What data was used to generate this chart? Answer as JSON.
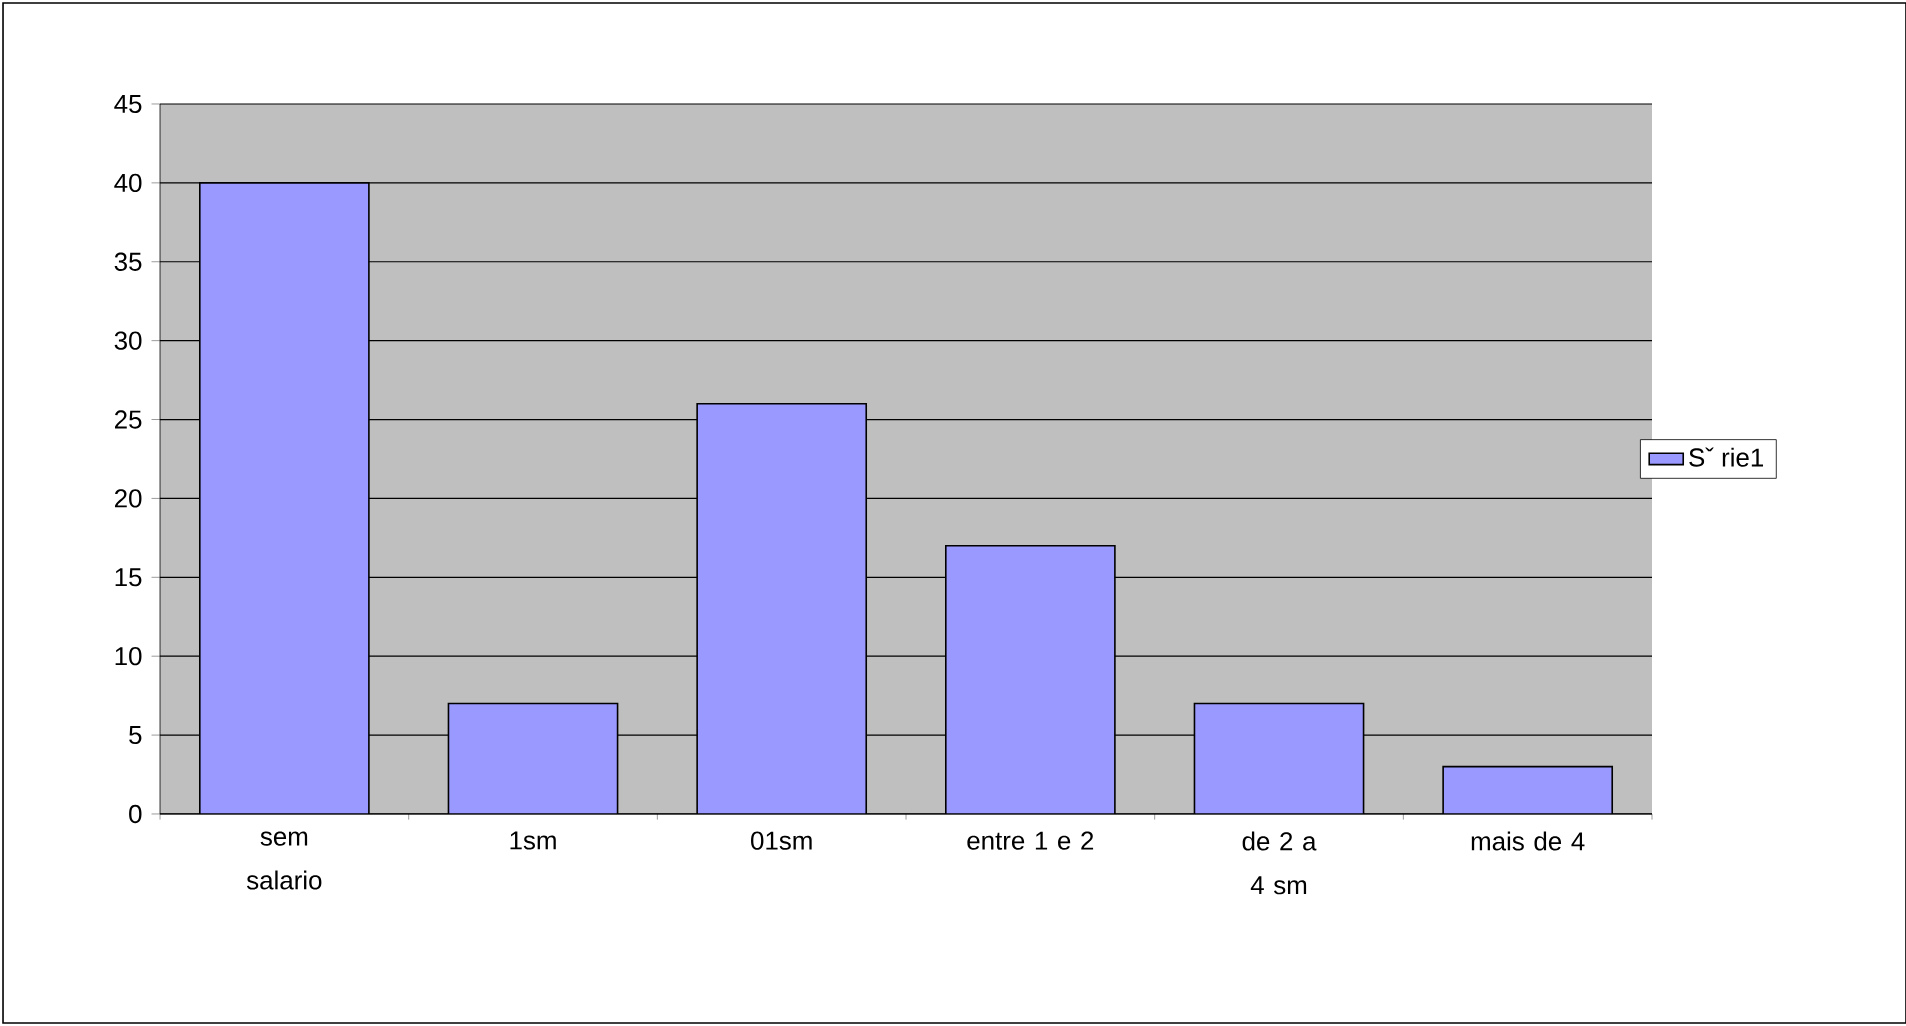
{
  "chart_data": {
    "type": "bar",
    "categories": [
      "sem salario",
      "1sm",
      "01sm",
      "entre 1 e 2",
      "de 2 a 4 sm",
      "mais de 4"
    ],
    "series": [
      {
        "name": "Sˇ rie1",
        "color": "#9999ff",
        "values": [
          40,
          7,
          26,
          17,
          7,
          3
        ]
      }
    ],
    "ylim": [
      0,
      45
    ],
    "yticks": [
      0,
      5,
      10,
      15,
      20,
      25,
      30,
      35,
      40,
      45
    ],
    "grid": "y",
    "legend": "right"
  }
}
